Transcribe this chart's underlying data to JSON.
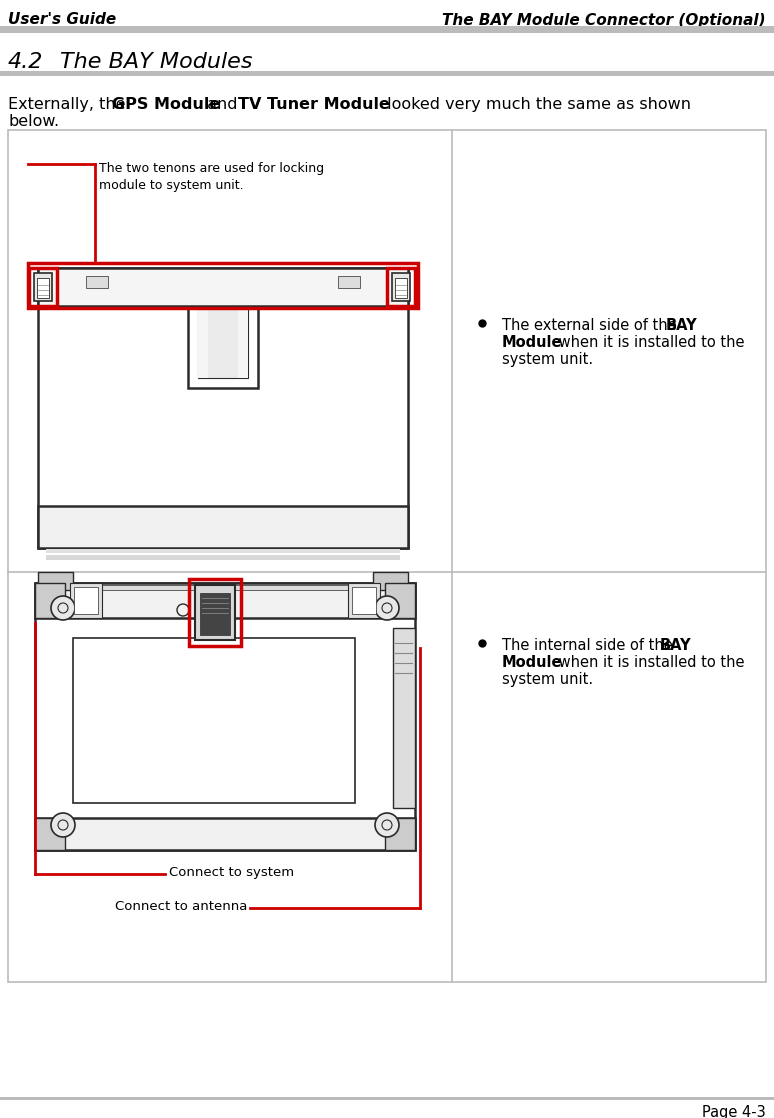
{
  "header_left": "User's Guide",
  "header_right": "The BAY Module Connector (Optional)",
  "section_num": "4.2",
  "section_title": "The BAY Modules",
  "intro_p1": "Externally, the ",
  "intro_b1": "GPS Module",
  "intro_p2": " and ",
  "intro_b2": "TV Tuner Module",
  "intro_p3": " looked very much the same as shown",
  "intro_p4": "below.",
  "bullet1_p1": "The external side of the ",
  "bullet1_b1": "BAY",
  "bullet1_p2": "Module",
  "bullet1_p3": " when it is installed to the",
  "bullet1_p4": "system unit.",
  "bullet2_p1": "The internal side of the ",
  "bullet2_b1": "BAY",
  "bullet2_p2": "Module",
  "bullet2_p3": " when it is installed to the",
  "bullet2_p4": "system unit.",
  "callout1": "The two tenons are used for locking\nmodule to system unit.",
  "callout2": "Connect to system",
  "callout3": "Connect to antenna",
  "footer": "Page 4-3",
  "red": "#CC0000",
  "edge": "#2A2A2A",
  "mid_gray": "#888888",
  "light_gray": "#CCCCCC",
  "med_gray": "#AAAAAA",
  "dark_gray": "#555555",
  "bg": "#FFFFFF",
  "table_line": "#BBBBBB"
}
